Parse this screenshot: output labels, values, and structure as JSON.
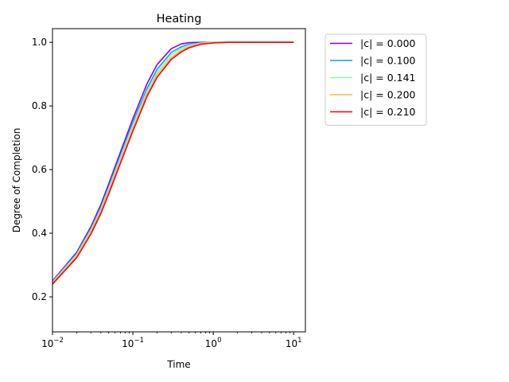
{
  "chart_data": {
    "type": "line",
    "title": "Heating",
    "xlabel": "Time",
    "ylabel": "Degree of Completion",
    "xscale": "log",
    "xlim": [
      0.01,
      14
    ],
    "ylim": [
      0.09,
      1.043
    ],
    "x_ticks": [
      {
        "value": 0.01,
        "base": "10",
        "exp": "−2"
      },
      {
        "value": 0.1,
        "base": "10",
        "exp": "−1"
      },
      {
        "value": 1,
        "base": "10",
        "exp": "0"
      },
      {
        "value": 10,
        "base": "10",
        "exp": "1"
      }
    ],
    "y_ticks": [
      {
        "value": 0.2,
        "label": "0.2"
      },
      {
        "value": 0.4,
        "label": "0.4"
      },
      {
        "value": 0.6,
        "label": "0.6"
      },
      {
        "value": 0.8,
        "label": "0.8"
      },
      {
        "value": 1.0,
        "label": "1.0"
      }
    ],
    "grid": false,
    "legend_position": "outside-top-right",
    "x": [
      0.01,
      0.02,
      0.03,
      0.04,
      0.05,
      0.07,
      0.1,
      0.15,
      0.2,
      0.3,
      0.4,
      0.5,
      0.7,
      1,
      1.5,
      2,
      3,
      5,
      10
    ],
    "series": [
      {
        "name": "|c| = 0.000",
        "color": "#7f00ff",
        "values": [
          0.25,
          0.34,
          0.42,
          0.49,
          0.555,
          0.655,
          0.76,
          0.87,
          0.93,
          0.98,
          0.995,
          0.999,
          1.0,
          1.0,
          1.0,
          1.0,
          1.0,
          1.0,
          1.0
        ]
      },
      {
        "name": "|c| = 0.100",
        "color": "#1996f3",
        "values": [
          0.248,
          0.336,
          0.414,
          0.482,
          0.546,
          0.645,
          0.748,
          0.855,
          0.915,
          0.968,
          0.986,
          0.994,
          0.998,
          1.0,
          1.0,
          1.0,
          1.0,
          1.0,
          1.0
        ]
      },
      {
        "name": "|c| = 0.141",
        "color": "#80ffb4",
        "values": [
          0.246,
          0.333,
          0.41,
          0.477,
          0.54,
          0.638,
          0.74,
          0.847,
          0.906,
          0.96,
          0.981,
          0.991,
          0.998,
          1.0,
          1.0,
          1.0,
          1.0,
          1.0,
          1.0
        ]
      },
      {
        "name": "|c| = 0.200",
        "color": "#ffb360",
        "values": [
          0.243,
          0.328,
          0.404,
          0.47,
          0.532,
          0.629,
          0.73,
          0.838,
          0.898,
          0.952,
          0.975,
          0.987,
          0.996,
          0.999,
          1.0,
          1.0,
          1.0,
          1.0,
          1.0
        ]
      },
      {
        "name": "|c| = 0.210",
        "color": "#ff0000",
        "values": [
          0.24,
          0.323,
          0.397,
          0.462,
          0.523,
          0.62,
          0.721,
          0.83,
          0.89,
          0.946,
          0.97,
          0.983,
          0.994,
          0.998,
          1.0,
          1.0,
          1.0,
          1.0,
          1.0
        ]
      }
    ]
  }
}
